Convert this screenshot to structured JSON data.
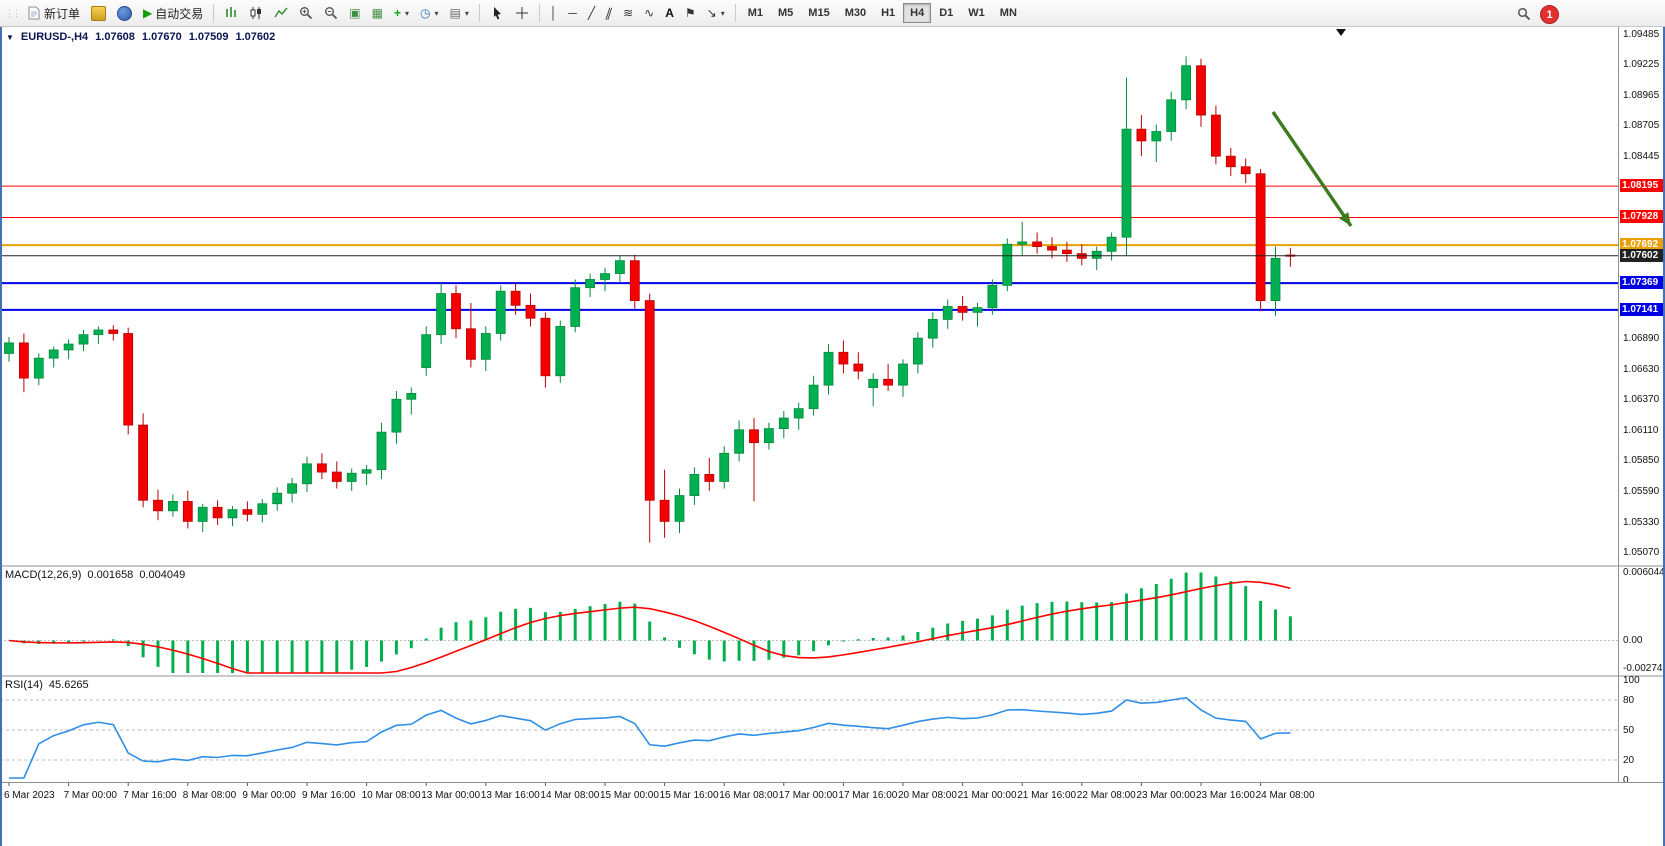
{
  "toolbar": {
    "new_order_label": "新订单",
    "autotrading_label": "自动交易",
    "timeframes": [
      "M1",
      "M5",
      "M15",
      "M30",
      "H1",
      "H4",
      "D1",
      "W1",
      "MN"
    ],
    "active_timeframe": "H4",
    "notification_count": "1",
    "icons": {
      "symbol_collapse": "▼",
      "autotrading_play": "▶",
      "tile": "▣",
      "cascade": "▦",
      "new_chart_plus": "+",
      "clock": "◷",
      "template": "▤",
      "caret": "▾",
      "vertical_line": "│",
      "horizontal_line": "─",
      "trendline": "╱",
      "channel": "∥",
      "fibonacci": "≋",
      "cycles": "∿",
      "text": "A",
      "label_flag": "⚑",
      "arrows": "↘",
      "grip": "⋮⋮"
    }
  },
  "chart_title": {
    "symbol": "EURUSD-,H4",
    "open": "1.07608",
    "high": "1.07670",
    "low": "1.07509",
    "close": "1.07602"
  },
  "colors": {
    "up": "#00b050",
    "up_border": "#008a3c",
    "down": "#f40000",
    "down_border": "#b80000",
    "resistance": "#ff0000",
    "support": "#0000e6",
    "pivot": "#e8a000",
    "current": "#222222",
    "arrow": "#3e7b1f"
  },
  "chart_data": {
    "type": "candlestick",
    "symbol": "EURUSD",
    "timeframe": "H4",
    "ylim": [
      1.0496,
      1.0955
    ],
    "price_ticks": [
      "1.09485",
      "1.09225",
      "1.08965",
      "1.08705",
      "1.08445",
      "1.06890",
      "1.06630",
      "1.06370",
      "1.06110",
      "1.05850",
      "1.05590",
      "1.05330",
      "1.05070"
    ],
    "levels": [
      {
        "label": "1.08195",
        "value": 1.08195,
        "color": "#ff0000",
        "width": 1,
        "role": "resistance"
      },
      {
        "label": "1.07928",
        "value": 1.07928,
        "color": "#ff0000",
        "width": 1,
        "role": "resistance"
      },
      {
        "label": "1.07692",
        "value": 1.07692,
        "color": "#e8a000",
        "width": 2,
        "role": "pivot"
      },
      {
        "label": "1.07369",
        "value": 1.07369,
        "color": "#0000e6",
        "width": 2,
        "role": "support"
      },
      {
        "label": "1.07141",
        "value": 1.07141,
        "color": "#0000e6",
        "width": 2,
        "role": "support"
      }
    ],
    "current_price": {
      "label": "1.07602",
      "value": 1.07602,
      "color": "#222222"
    },
    "annotations": [
      {
        "type": "arrow",
        "from": [
          1273,
          112
        ],
        "to": [
          1351,
          226
        ],
        "color": "#3e7b1f"
      }
    ],
    "candles": [
      [
        1.0677,
        1.0691,
        1.067,
        1.0686
      ],
      [
        1.0686,
        1.0694,
        1.0644,
        1.0656
      ],
      [
        1.0656,
        1.0677,
        1.065,
        1.0673
      ],
      [
        1.0673,
        1.0683,
        1.0665,
        1.068
      ],
      [
        1.068,
        1.0689,
        1.0672,
        1.0685
      ],
      [
        1.0685,
        1.0697,
        1.0679,
        1.0693
      ],
      [
        1.0693,
        1.07,
        1.0685,
        1.0697
      ],
      [
        1.0697,
        1.0701,
        1.0688,
        1.0694
      ],
      [
        1.0694,
        1.0699,
        1.0608,
        1.0616
      ],
      [
        1.0616,
        1.0626,
        1.0546,
        1.0552
      ],
      [
        1.0552,
        1.0561,
        1.0535,
        1.0543
      ],
      [
        1.0543,
        1.0557,
        1.0538,
        1.0551
      ],
      [
        1.0551,
        1.056,
        1.0528,
        1.0534
      ],
      [
        1.0534,
        1.0549,
        1.0525,
        1.0546
      ],
      [
        1.0546,
        1.0552,
        1.0531,
        1.0537
      ],
      [
        1.0537,
        1.0547,
        1.053,
        1.0544
      ],
      [
        1.0544,
        1.0551,
        1.0534,
        1.054
      ],
      [
        1.054,
        1.0553,
        1.0533,
        1.0549
      ],
      [
        1.0549,
        1.0563,
        1.0543,
        1.0558
      ],
      [
        1.0558,
        1.0571,
        1.055,
        1.0566
      ],
      [
        1.0566,
        1.0589,
        1.0559,
        1.0583
      ],
      [
        1.0583,
        1.0592,
        1.057,
        1.0576
      ],
      [
        1.0576,
        1.0585,
        1.0562,
        1.0568
      ],
      [
        1.0568,
        1.0579,
        1.056,
        1.0575
      ],
      [
        1.0575,
        1.0582,
        1.0565,
        1.0578
      ],
      [
        1.0578,
        1.0618,
        1.057,
        1.061
      ],
      [
        1.061,
        1.0645,
        1.06,
        1.0638
      ],
      [
        1.0638,
        1.0648,
        1.0625,
        1.0643
      ],
      [
        1.0665,
        1.07,
        1.0658,
        1.0693
      ],
      [
        1.0693,
        1.0737,
        1.0685,
        1.0728
      ],
      [
        1.0728,
        1.0735,
        1.069,
        1.0698
      ],
      [
        1.0698,
        1.072,
        1.0665,
        1.0672
      ],
      [
        1.0672,
        1.07,
        1.0662,
        1.0694
      ],
      [
        1.0694,
        1.0735,
        1.0688,
        1.073
      ],
      [
        1.073,
        1.0737,
        1.071,
        1.0718
      ],
      [
        1.0718,
        1.0728,
        1.07,
        1.0707
      ],
      [
        1.0707,
        1.0712,
        1.0648,
        1.0658
      ],
      [
        1.0658,
        1.0705,
        1.0652,
        1.07
      ],
      [
        1.07,
        1.074,
        1.0695,
        1.0733
      ],
      [
        1.0733,
        1.0745,
        1.0725,
        1.074
      ],
      [
        1.074,
        1.075,
        1.073,
        1.0745
      ],
      [
        1.0745,
        1.076,
        1.0738,
        1.0756
      ],
      [
        1.0756,
        1.0761,
        1.0715,
        1.0722
      ],
      [
        1.0722,
        1.0728,
        1.0516,
        1.0552
      ],
      [
        1.0552,
        1.0578,
        1.052,
        1.0534
      ],
      [
        1.0534,
        1.0562,
        1.0524,
        1.0556
      ],
      [
        1.0556,
        1.058,
        1.0548,
        1.0574
      ],
      [
        1.0574,
        1.0588,
        1.056,
        1.0568
      ],
      [
        1.0568,
        1.0598,
        1.0562,
        1.0592
      ],
      [
        1.0592,
        1.062,
        1.0585,
        1.0612
      ],
      [
        1.0612,
        1.0622,
        1.0551,
        1.0601
      ],
      [
        1.0601,
        1.0618,
        1.0595,
        1.0613
      ],
      [
        1.0613,
        1.0628,
        1.0605,
        1.0622
      ],
      [
        1.0622,
        1.0635,
        1.0612,
        1.063
      ],
      [
        1.063,
        1.0658,
        1.0624,
        1.065
      ],
      [
        1.065,
        1.0685,
        1.0642,
        1.0678
      ],
      [
        1.0678,
        1.0688,
        1.066,
        1.0668
      ],
      [
        1.0668,
        1.0678,
        1.0655,
        1.0662
      ],
      [
        1.0648,
        1.066,
        1.0632,
        1.0655
      ],
      [
        1.0655,
        1.0668,
        1.0645,
        1.065
      ],
      [
        1.065,
        1.0672,
        1.064,
        1.0668
      ],
      [
        1.0668,
        1.0695,
        1.066,
        1.069
      ],
      [
        1.069,
        1.0712,
        1.0682,
        1.0706
      ],
      [
        1.0706,
        1.0723,
        1.0698,
        1.0717
      ],
      [
        1.0717,
        1.0726,
        1.0705,
        1.0712
      ],
      [
        1.0712,
        1.072,
        1.07,
        1.0716
      ],
      [
        1.0716,
        1.074,
        1.071,
        1.0735
      ],
      [
        1.0735,
        1.0775,
        1.073,
        1.077
      ],
      [
        1.077,
        1.0789,
        1.076,
        1.0772
      ],
      [
        1.0772,
        1.078,
        1.0762,
        1.0768
      ],
      [
        1.0768,
        1.0776,
        1.0758,
        1.0765
      ],
      [
        1.0765,
        1.0772,
        1.0755,
        1.0762
      ],
      [
        1.0762,
        1.077,
        1.0752,
        1.0758
      ],
      [
        1.0758,
        1.0768,
        1.0748,
        1.0764
      ],
      [
        1.0764,
        1.078,
        1.0756,
        1.0776
      ],
      [
        1.0776,
        1.0912,
        1.076,
        1.0868
      ],
      [
        1.0868,
        1.088,
        1.0845,
        1.0858
      ],
      [
        1.0858,
        1.0872,
        1.084,
        1.0866
      ],
      [
        1.0866,
        1.09,
        1.0858,
        1.0893
      ],
      [
        1.0893,
        1.093,
        1.0885,
        1.0922
      ],
      [
        1.0922,
        1.0928,
        1.087,
        1.088
      ],
      [
        1.088,
        1.0888,
        1.0838,
        1.0845
      ],
      [
        1.0845,
        1.0852,
        1.0828,
        1.0836
      ],
      [
        1.0836,
        1.0843,
        1.0822,
        1.083
      ],
      [
        1.083,
        1.0834,
        1.0713,
        1.0722
      ],
      [
        1.0722,
        1.0768,
        1.0709,
        1.0758
      ],
      [
        1.07608,
        1.0767,
        1.07509,
        1.07602
      ]
    ],
    "time_labels": [
      "6 Mar 2023",
      "7 Mar 00:00",
      "7 Mar 16:00",
      "8 Mar 08:00",
      "9 Mar 00:00",
      "9 Mar 16:00",
      "10 Mar 08:00",
      "13 Mar 00:00",
      "13 Mar 16:00",
      "14 Mar 08:00",
      "15 Mar 00:00",
      "15 Mar 16:00",
      "16 Mar 08:00",
      "17 Mar 00:00",
      "17 Mar 16:00",
      "20 Mar 08:00",
      "21 Mar 00:00",
      "21 Mar 16:00",
      "22 Mar 08:00",
      "23 Mar 00:00",
      "23 Mar 16:00",
      "24 Mar 08:00"
    ],
    "label_step": 4,
    "macd": {
      "label": "MACD(12,26,9)",
      "values": [
        "0.001658",
        "0.004049"
      ],
      "params": [
        12,
        26,
        9
      ],
      "ylim": [
        -0.002746,
        0.006044
      ],
      "scale_labels": [
        "0.006044",
        "0.00",
        "-0.002746"
      ],
      "hist_color": "#00b050",
      "signal_color": "#ff0000"
    },
    "rsi": {
      "label": "RSI(14)",
      "value": "45.6265",
      "period": 14,
      "ylim": [
        0,
        100
      ],
      "scale_labels": [
        "100",
        "80",
        "50",
        "20",
        "0"
      ],
      "levels": [
        80,
        50,
        20
      ],
      "line_color": "#2f8fe8"
    }
  }
}
